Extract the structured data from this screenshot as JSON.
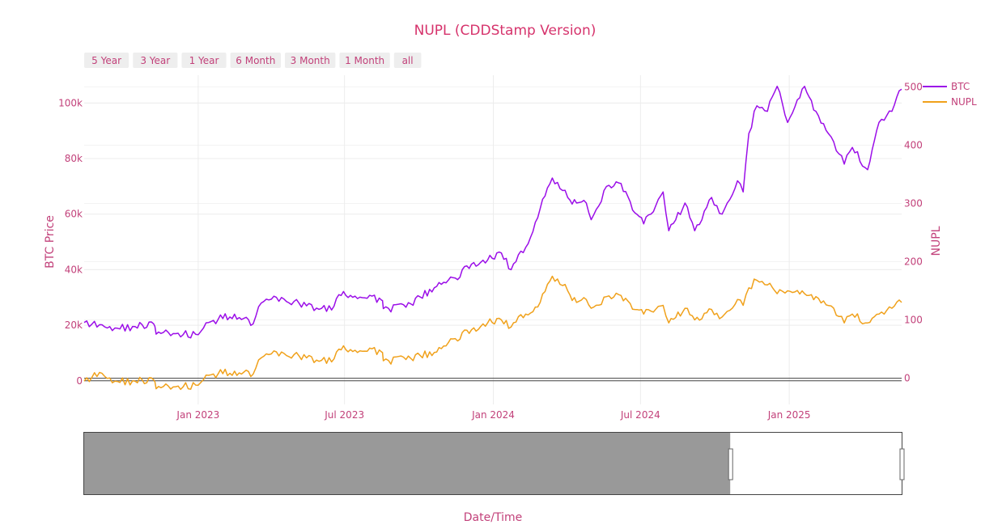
{
  "chart_data": {
    "type": "line",
    "title": "NUPL (CDDStamp Version)",
    "xlabel": "Date/Time",
    "ylabel": "BTC Price",
    "y2label": "NUPL",
    "xlim": [
      "2022-08-13",
      "2025-05-20"
    ],
    "ylim": [
      -8500,
      110000
    ],
    "y2lim": [
      -45,
      520
    ],
    "x_ticks": [
      "2023-01-01",
      "2023-07-01",
      "2024-01-01",
      "2024-07-01",
      "2025-01-01"
    ],
    "x_tick_labels": [
      "Jan 2023",
      "Jul 2023",
      "Jan 2024",
      "Jul 2024",
      "Jan 2025"
    ],
    "y_ticks": [
      0,
      20000,
      40000,
      60000,
      80000,
      100000
    ],
    "y_tick_labels": [
      "0",
      "20k",
      "40k",
      "60k",
      "80k",
      "100k"
    ],
    "y2_ticks": [
      0,
      100,
      200,
      300,
      400,
      500
    ],
    "y2_tick_labels": [
      "0",
      "100",
      "200",
      "300",
      "400",
      "500"
    ],
    "grid": true,
    "legend_position": "top-right",
    "range_selector": [
      "5 Year",
      "3 Year",
      "1 Year",
      "6 Month",
      "3 Month",
      "1 Month",
      "all"
    ],
    "range_slider": {
      "window": [
        "2024-10-20",
        "2025-05-20"
      ]
    },
    "colors": {
      "BTC": "#9b0ee8",
      "NUPL": "#f0a11b",
      "accent": "#d6336c",
      "slider_fill": "#999999"
    },
    "series": [
      {
        "name": "BTC",
        "axis": "left",
        "x": [
          "2022-08-13",
          "2022-09-01",
          "2022-09-20",
          "2022-10-15",
          "2022-11-07",
          "2022-11-10",
          "2022-12-01",
          "2023-01-01",
          "2023-01-14",
          "2023-02-15",
          "2023-03-10",
          "2023-03-20",
          "2023-04-14",
          "2023-05-15",
          "2023-06-15",
          "2023-06-24",
          "2023-07-14",
          "2023-08-16",
          "2023-08-18",
          "2023-09-15",
          "2023-10-23",
          "2023-11-15",
          "2023-12-05",
          "2023-12-25",
          "2024-01-11",
          "2024-01-23",
          "2024-02-10",
          "2024-02-28",
          "2024-03-14",
          "2024-04-02",
          "2024-04-13",
          "2024-04-25",
          "2024-05-01",
          "2024-05-20",
          "2024-06-07",
          "2024-06-24",
          "2024-07-05",
          "2024-07-14",
          "2024-07-29",
          "2024-08-05",
          "2024-08-25",
          "2024-09-06",
          "2024-09-27",
          "2024-10-10",
          "2024-10-29",
          "2024-11-05",
          "2024-11-12",
          "2024-11-22",
          "2024-12-05",
          "2024-12-17",
          "2024-12-30",
          "2025-01-20",
          "2025-02-03",
          "2025-02-25",
          "2025-03-10",
          "2025-03-20",
          "2025-04-08",
          "2025-04-22",
          "2025-05-08",
          "2025-05-20"
        ],
        "values": [
          21000,
          20200,
          19000,
          19500,
          20500,
          16800,
          17000,
          16600,
          21000,
          24000,
          20500,
          28000,
          30000,
          27000,
          25500,
          31000,
          30500,
          29000,
          26000,
          26500,
          34000,
          37000,
          42000,
          43500,
          46000,
          40000,
          48000,
          62000,
          73000,
          66000,
          64000,
          64000,
          58000,
          70000,
          71000,
          60500,
          56500,
          60000,
          68000,
          54000,
          64000,
          54000,
          66000,
          60000,
          72000,
          68000,
          89000,
          99000,
          97000,
          106000,
          93000,
          106000,
          97000,
          86000,
          78000,
          84000,
          76000,
          93000,
          97000,
          105000
        ]
      },
      {
        "name": "NUPL",
        "axis": "right",
        "x": [
          "2022-08-13",
          "2022-09-01",
          "2022-09-20",
          "2022-10-15",
          "2022-11-07",
          "2022-11-10",
          "2022-12-01",
          "2023-01-01",
          "2023-01-14",
          "2023-02-15",
          "2023-03-10",
          "2023-03-20",
          "2023-04-14",
          "2023-05-15",
          "2023-06-15",
          "2023-06-24",
          "2023-07-14",
          "2023-08-16",
          "2023-08-18",
          "2023-09-15",
          "2023-10-23",
          "2023-11-15",
          "2023-12-05",
          "2023-12-25",
          "2024-01-11",
          "2024-01-23",
          "2024-02-10",
          "2024-02-28",
          "2024-03-14",
          "2024-04-02",
          "2024-04-13",
          "2024-04-25",
          "2024-05-01",
          "2024-05-20",
          "2024-06-07",
          "2024-06-24",
          "2024-07-05",
          "2024-07-14",
          "2024-07-29",
          "2024-08-05",
          "2024-08-25",
          "2024-09-06",
          "2024-09-27",
          "2024-10-10",
          "2024-10-29",
          "2024-11-05",
          "2024-11-12",
          "2024-11-22",
          "2024-12-05",
          "2024-12-17",
          "2024-12-30",
          "2025-01-20",
          "2025-02-03",
          "2025-02-25",
          "2025-03-10",
          "2025-03-20",
          "2025-04-08",
          "2025-04-22",
          "2025-05-08",
          "2025-05-20"
        ],
        "values": [
          -5,
          10,
          -5,
          -5,
          -3,
          -18,
          -15,
          -12,
          5,
          12,
          7,
          35,
          45,
          35,
          28,
          50,
          48,
          45,
          30,
          32,
          45,
          68,
          83,
          95,
          100,
          88,
          110,
          130,
          175,
          150,
          130,
          135,
          120,
          140,
          142,
          118,
          110,
          115,
          125,
          95,
          120,
          100,
          118,
          105,
          135,
          125,
          155,
          168,
          160,
          145,
          150,
          145,
          140,
          120,
          95,
          110,
          95,
          110,
          120,
          130
        ]
      }
    ]
  }
}
